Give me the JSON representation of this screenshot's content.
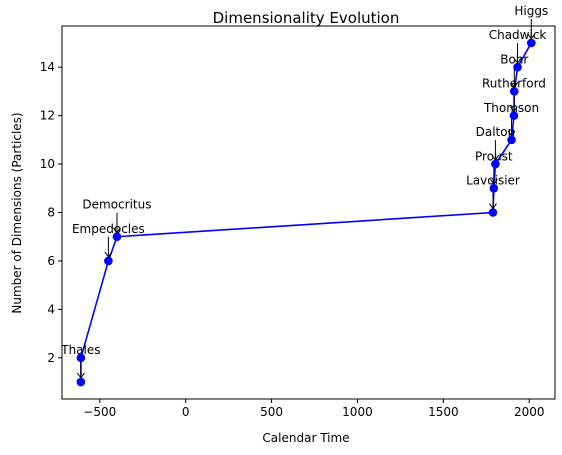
{
  "chart_data": {
    "type": "line",
    "title": "Dimensionality Evolution",
    "xlabel": "Calendar Time",
    "ylabel": "Number of Dimensions (Particles)",
    "xlim": [
      -720,
      2150
    ],
    "ylim": [
      0.3,
      15.7
    ],
    "xticks": [
      -500,
      0,
      500,
      1000,
      1500,
      2000
    ],
    "yticks": [
      2,
      4,
      6,
      8,
      10,
      12,
      14
    ],
    "grid": false,
    "legend": "none",
    "color": "#0000ff",
    "series": [
      {
        "x": [
          -610,
          -610,
          -450,
          -400,
          1789,
          1794,
          1803,
          1897,
          1911,
          1913,
          1932,
          2012
        ],
        "y": [
          1,
          2,
          6,
          7,
          8,
          9,
          10,
          11,
          12,
          13,
          14,
          15
        ],
        "labels": [
          "Thales",
          "",
          "Empedocles",
          "Democritus",
          "Lavoisier",
          "Proust",
          "Dalton",
          "Thomson",
          "Rutherford",
          "Bohr",
          "Chadwick",
          "Higgs"
        ]
      }
    ]
  }
}
